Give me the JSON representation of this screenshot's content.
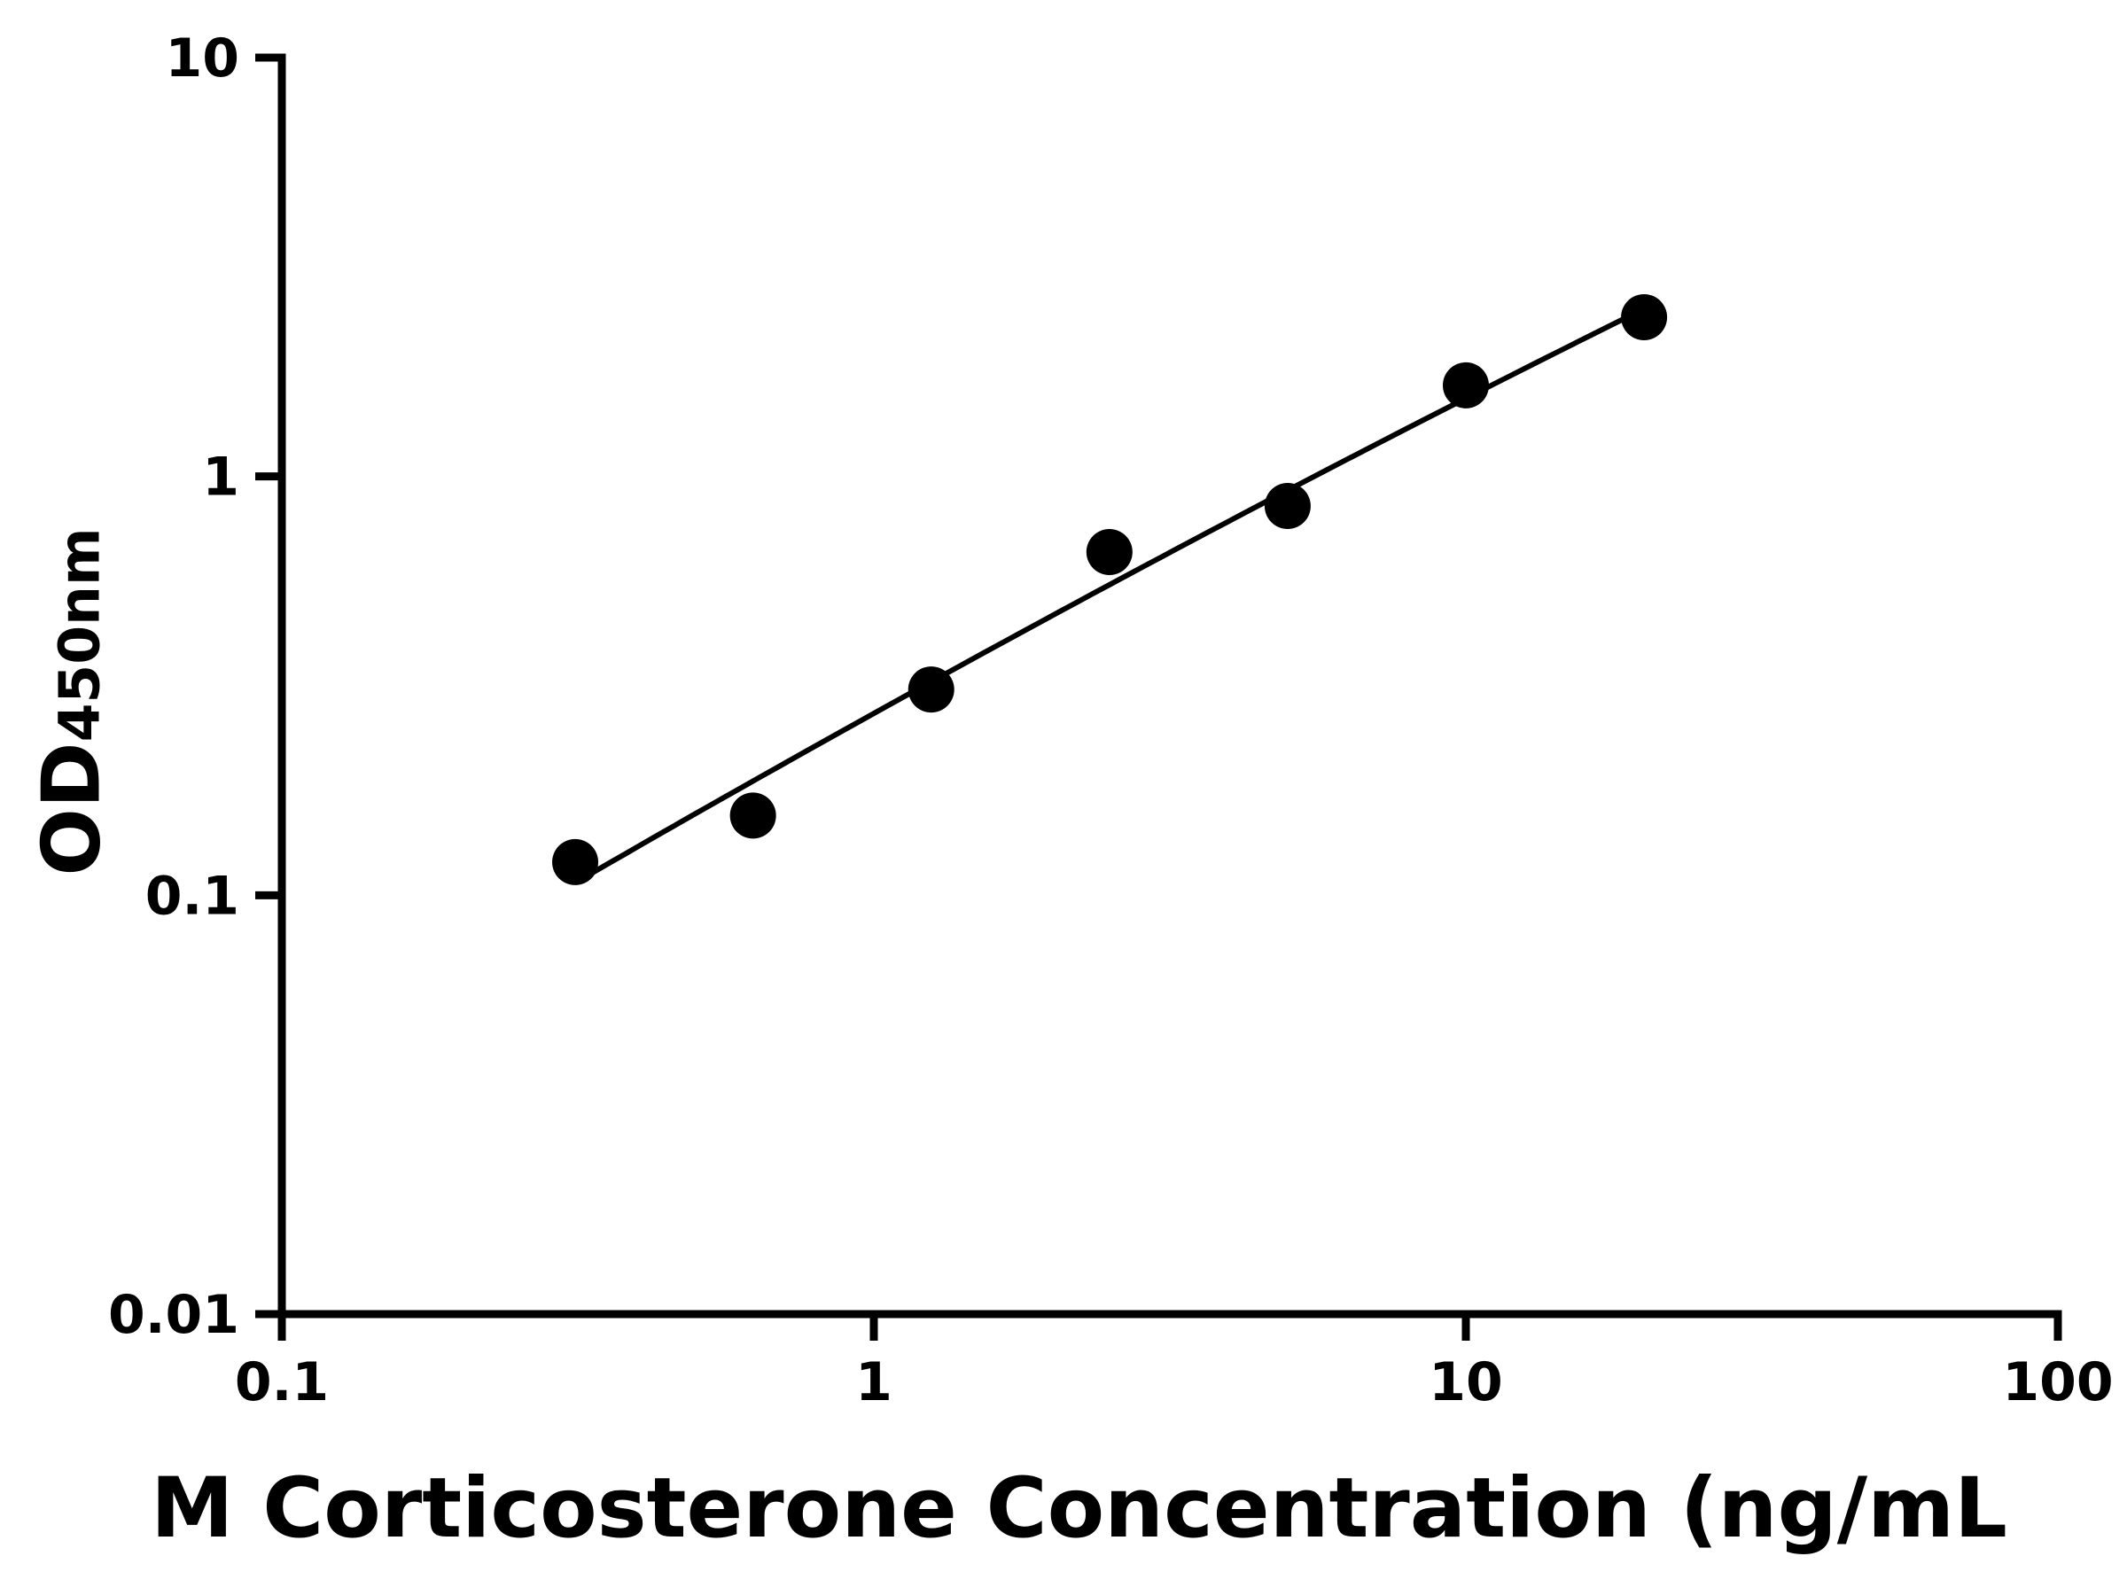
{
  "page": {
    "background": "#ffffff"
  },
  "chart_data": {
    "type": "scatter",
    "title": "",
    "xlabel": "M Corticosterone Concentration (ng/mL",
    "ylabel": "OD450nm",
    "ylabel_main": "OD",
    "ylabel_sub": "450nm",
    "x_scale": "log",
    "y_scale": "log",
    "xlim": [
      0.1,
      100
    ],
    "ylim": [
      0.01,
      10
    ],
    "x_ticks": [
      0.1,
      1,
      10,
      100
    ],
    "x_tick_labels": [
      "0.1",
      "1",
      "10",
      "100"
    ],
    "y_ticks": [
      0.01,
      0.1,
      1,
      10
    ],
    "y_tick_labels": [
      "0.01",
      "0.1",
      "1",
      "10"
    ],
    "grid": false,
    "legend": false,
    "axis_color": "#000000",
    "marker": "circle",
    "marker_color": "#000000",
    "line_color": "#000000",
    "series": [
      {
        "points": [
          {
            "x": 0.313,
            "y": 0.12
          },
          {
            "x": 0.625,
            "y": 0.155
          },
          {
            "x": 1.25,
            "y": 0.31
          },
          {
            "x": 2.5,
            "y": 0.66
          },
          {
            "x": 5,
            "y": 0.85
          },
          {
            "x": 10,
            "y": 1.65
          },
          {
            "x": 20,
            "y": 2.4
          }
        ],
        "fit_line": true
      }
    ]
  }
}
